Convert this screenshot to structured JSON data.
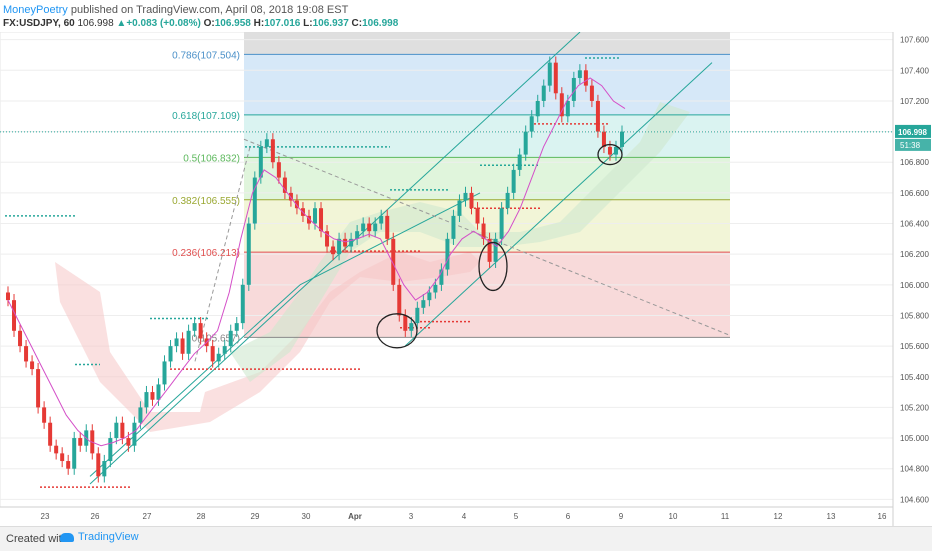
{
  "header": {
    "author": "MoneyPoetry",
    "published": " published on TradingView.com, April 08, 2018 19:08 EST",
    "symbol": "FX:USDJPY, 60",
    "last": "106.998",
    "change_prefix": "▲",
    "change": "+0.083 (+0.08%)",
    "o_label": "O:",
    "o": "106.958",
    "h_label": "H:",
    "h": "107.016",
    "l_label": "L:",
    "l": "106.937",
    "c_label": "C:",
    "c": "106.998"
  },
  "footer": {
    "created_with": "Created with",
    "brand": "TradingView"
  },
  "chart_data": {
    "type": "line",
    "instrument": "FX:USDJPY, 60",
    "ylim": [
      104.55,
      107.65
    ],
    "x_tick_labels": [
      "23",
      "26",
      "27",
      "28",
      "29",
      "30",
      "Apr",
      "3",
      "4",
      "5",
      "6",
      "9",
      "10",
      "11",
      "12",
      "13",
      "16"
    ],
    "y_tick_labels": [
      "107.600",
      "107.400",
      "107.200",
      "107.000",
      "106.800",
      "106.600",
      "106.400",
      "106.200",
      "106.000",
      "105.800",
      "105.600",
      "105.400",
      "105.200",
      "105.000",
      "104.800",
      "104.600"
    ],
    "y_ticks": [
      107.6,
      107.4,
      107.2,
      107.0,
      106.8,
      106.6,
      106.4,
      106.2,
      106.0,
      105.8,
      105.6,
      105.4,
      105.2,
      105.0,
      104.8,
      104.6
    ],
    "last_price_label": "106.998",
    "countdown_label": "51:38",
    "last_price": 106.998,
    "fib_levels": [
      {
        "label": "0.786(107.504)",
        "price": 107.504,
        "color": "#4a90c8"
      },
      {
        "label": "0.618(107.109)",
        "price": 107.109,
        "color": "#26a69a"
      },
      {
        "label": "0.5(106.832)",
        "price": 106.832,
        "color": "#5cb85c"
      },
      {
        "label": "0.382(106.555)",
        "price": 106.555,
        "color": "#9aa832"
      },
      {
        "label": "0.236(106.213)",
        "price": 106.213,
        "color": "#e05050"
      },
      {
        "label": "0(105.657)",
        "price": 105.657,
        "color": "#888888"
      }
    ],
    "fib_zones": [
      {
        "from": 107.65,
        "to": 107.504,
        "color": "#d9d9d9"
      },
      {
        "from": 107.504,
        "to": 107.109,
        "color": "#cfe4f7"
      },
      {
        "from": 107.109,
        "to": 106.832,
        "color": "#d3f1ee"
      },
      {
        "from": 106.832,
        "to": 106.555,
        "color": "#dbf3d6"
      },
      {
        "from": 106.555,
        "to": 106.213,
        "color": "#f0f3d0"
      },
      {
        "from": 106.213,
        "to": 105.657,
        "color": "#f7d3d3"
      }
    ],
    "candle_closes": [
      105.9,
      105.7,
      105.6,
      105.5,
      105.45,
      105.2,
      105.1,
      104.95,
      104.9,
      104.85,
      104.8,
      105.0,
      104.95,
      105.05,
      104.9,
      104.75,
      104.85,
      105.0,
      105.1,
      105.0,
      104.95,
      105.1,
      105.2,
      105.3,
      105.25,
      105.35,
      105.5,
      105.6,
      105.65,
      105.55,
      105.7,
      105.75,
      105.65,
      105.6,
      105.5,
      105.55,
      105.6,
      105.7,
      105.75,
      106.0,
      106.4,
      106.7,
      106.9,
      106.95,
      106.8,
      106.7,
      106.6,
      106.55,
      106.5,
      106.45,
      106.4,
      106.5,
      106.35,
      106.25,
      106.2,
      106.3,
      106.25,
      106.3,
      106.35,
      106.4,
      106.35,
      106.4,
      106.45,
      106.3,
      106.0,
      105.8,
      105.7,
      105.75,
      105.85,
      105.9,
      105.95,
      106.0,
      106.1,
      106.3,
      106.45,
      106.55,
      106.6,
      106.5,
      106.4,
      106.3,
      106.15,
      106.3,
      106.5,
      106.6,
      106.75,
      106.85,
      107.0,
      107.1,
      107.2,
      107.3,
      107.45,
      107.25,
      107.1,
      107.2,
      107.35,
      107.4,
      107.3,
      107.2,
      107.0,
      106.9,
      106.85,
      106.9,
      107.0
    ],
    "sma_values": [
      105.9,
      105.75,
      105.6,
      105.45,
      105.3,
      105.15,
      105.05,
      104.98,
      104.95,
      104.97,
      105.0,
      105.05,
      105.15,
      105.25,
      105.35,
      105.45,
      105.55,
      105.62,
      105.7,
      105.95,
      106.3,
      106.6,
      106.75,
      106.7,
      106.6,
      106.5,
      106.42,
      106.35,
      106.3,
      106.28,
      106.3,
      106.33,
      106.3,
      106.15,
      106.0,
      105.9,
      105.95,
      106.05,
      106.2,
      106.3,
      106.35,
      106.3,
      106.25,
      106.35,
      106.5,
      106.7,
      106.9,
      107.05,
      107.2,
      107.3,
      107.35,
      107.3,
      107.2,
      107.15
    ]
  }
}
